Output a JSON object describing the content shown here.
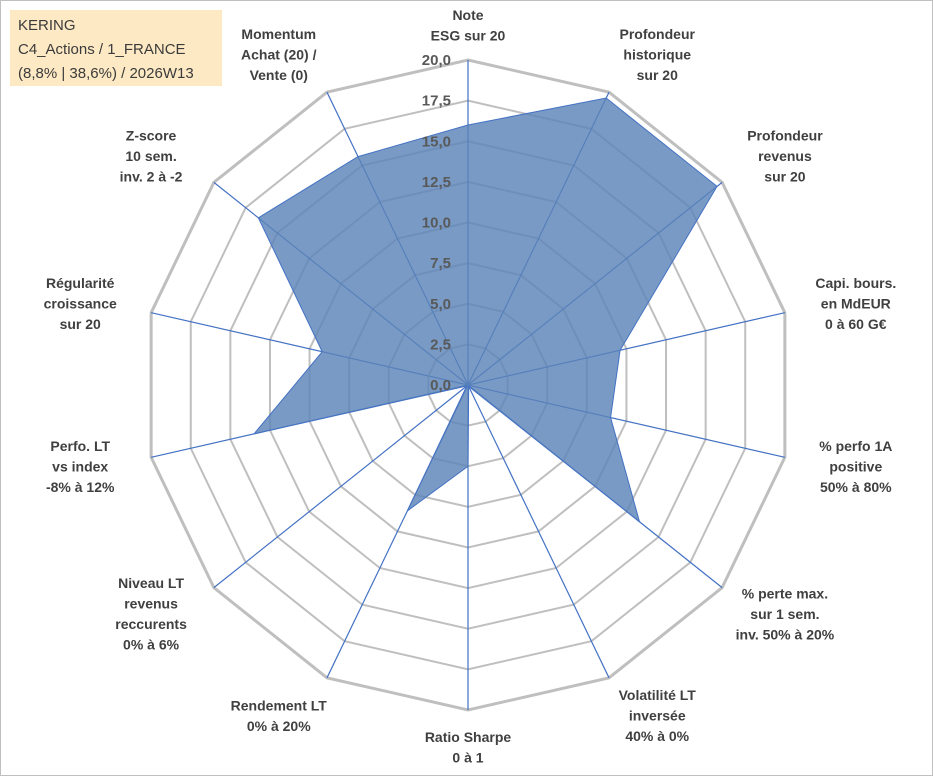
{
  "info": {
    "line1": "KERING",
    "line2": "C4_Actions / 1_FRANCE",
    "line3": "(8,8% | 38,6%) / 2026W13"
  },
  "chart_data": {
    "type": "radar",
    "rmin": 0,
    "rmax": 20,
    "ticks": [
      "0,0",
      "2,5",
      "5,0",
      "7,5",
      "10,0",
      "12,5",
      "15,0",
      "17,5",
      "20,0"
    ],
    "tick_values": [
      0,
      2.5,
      5,
      7.5,
      10,
      12.5,
      15,
      17.5,
      20
    ],
    "grid_color": "#bfbfbf",
    "axis_color": "#4472c4",
    "fill_color": "#5b84b8",
    "axes": [
      {
        "lines": [
          "Note",
          "ESG sur 20"
        ]
      },
      {
        "lines": [
          "Profondeur",
          "historique",
          "sur 20"
        ]
      },
      {
        "lines": [
          "Profondeur",
          "revenus",
          "sur 20"
        ]
      },
      {
        "lines": [
          "Capi. bours.",
          "en MdEUR",
          "0 à 60 G€"
        ]
      },
      {
        "lines": [
          "% perfo 1A",
          "positive",
          "50% à 80%"
        ]
      },
      {
        "lines": [
          "% perte max.",
          "sur 1 sem.",
          "inv. 50% à 20%"
        ]
      },
      {
        "lines": [
          "Volatilité LT",
          "inversée",
          "40% à 0%"
        ]
      },
      {
        "lines": [
          "Ratio Sharpe",
          "0 à 1"
        ]
      },
      {
        "lines": [
          "Rendement LT",
          "0% à 20%"
        ]
      },
      {
        "lines": [
          "Niveau LT",
          "revenus",
          "reccurents",
          "0% à 6%"
        ]
      },
      {
        "lines": [
          "Perfo. LT",
          "vs index",
          "-8% à 12%"
        ]
      },
      {
        "lines": [
          "Régularité",
          "croissance",
          "sur 20"
        ]
      },
      {
        "lines": [
          "Z-score",
          "10 sem.",
          "inv. 2 à -2"
        ]
      },
      {
        "lines": [
          "Momentum",
          "Achat (20) /",
          "Vente (0)"
        ]
      }
    ],
    "series": [
      {
        "values": [
          16.0,
          19.6,
          19.6,
          9.6,
          9.0,
          13.5,
          0.1,
          5.0,
          8.6,
          0.1,
          13.5,
          9.2,
          16.5,
          15.6
        ]
      }
    ]
  }
}
